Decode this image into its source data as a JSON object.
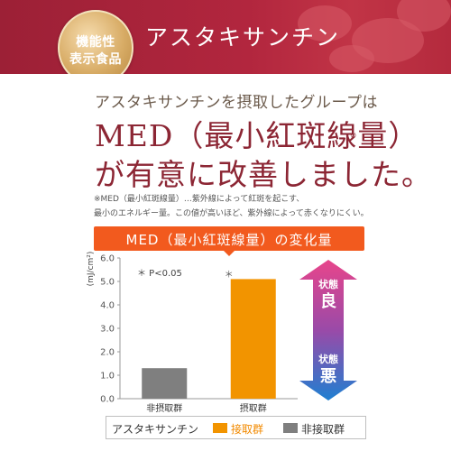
{
  "badge": {
    "line1": "機能性",
    "line2": "表示食品"
  },
  "banner_title": "アスタキサンチン",
  "sub_heading": "アスタキサンチンを摂取したグループは",
  "headline": {
    "line1": "MED（最小紅斑線量）",
    "asterisk": "※",
    "line2": "が有意に改善しました。"
  },
  "notes": [
    "※MED（最小紅斑線量）…紫外線によって紅斑を起こす、",
    "最小のエネルギー量。この値が高いほど、紫外線によって赤くなりにくい。"
  ],
  "chart_title": "MED（最小紅斑線量）の変化量",
  "p_note": "＊ P<0.05",
  "significance_marker": "＊",
  "status_arrow": {
    "top_small": "状態",
    "top_big": "良",
    "bottom_small": "状態",
    "bottom_big": "悪",
    "top_color": "#e8458b",
    "bottom_color": "#1f7fd1"
  },
  "legend": {
    "title": "アスタキサンチン",
    "items": [
      {
        "label": "接取群",
        "color": "#f29400"
      },
      {
        "label": "非接取群",
        "color": "#7f7f7f"
      }
    ]
  },
  "chart_data": {
    "type": "bar",
    "categories": [
      "非摂取群",
      "摂取群"
    ],
    "values": [
      1.3,
      5.1
    ],
    "colors": [
      "#7f7f7f",
      "#f29400"
    ],
    "ylabel": "(mJ/cm²)",
    "ylim": [
      0,
      6
    ],
    "yticks": [
      "0.0",
      "1.0",
      "2.0",
      "3.0",
      "4.0",
      "5.0",
      "6.0"
    ],
    "grid": false
  }
}
